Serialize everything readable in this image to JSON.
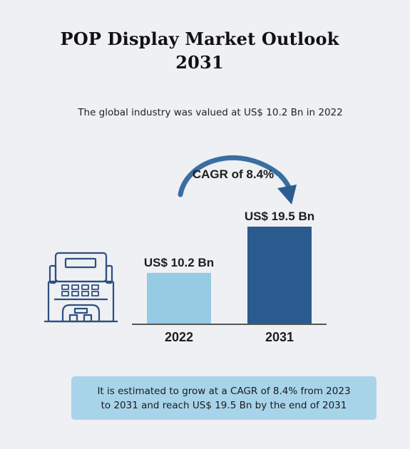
{
  "title_line1": "POP Display Market Outlook",
  "title_line2": "2031",
  "subtitle": "The global industry was valued at US$ 10.2 Bn in 2022",
  "cagr_label": "CAGR of 8.4%",
  "note_line1": "It is estimated to grow at a CAGR of 8.4% from 2023",
  "note_line2": "to 2031 and reach US$ 19.5 Bn by the end of 2031",
  "icon": "pop-display-stand-icon",
  "colors": {
    "bar_2022": "#96cbe4",
    "bar_2031": "#2a5b8e",
    "arrow": "#3b6ea0",
    "icon": "#2e4f80",
    "note_bg": "#a8d4ea"
  },
  "chart_data": {
    "type": "bar",
    "categories": [
      "2022",
      "2031"
    ],
    "values": [
      10.2,
      19.5
    ],
    "data_labels": [
      "US$ 10.2 Bn",
      "US$ 19.5 Bn"
    ],
    "title": "",
    "xlabel": "",
    "ylabel": "",
    "ylim": [
      0,
      19.5
    ],
    "grid": false,
    "legend": "none"
  }
}
